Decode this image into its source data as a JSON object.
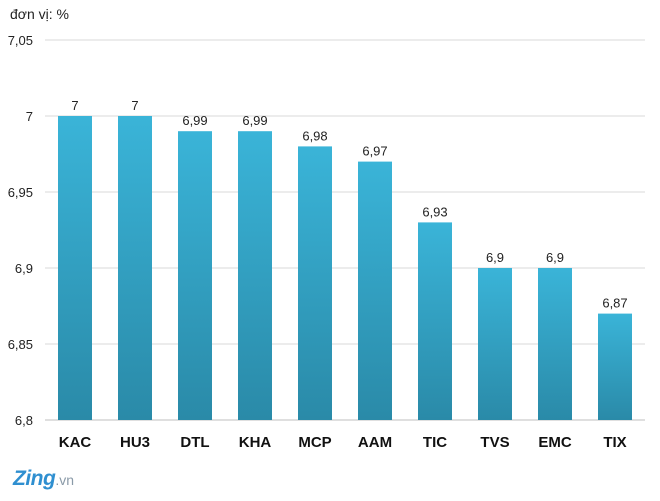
{
  "unit_label": "đơn vị: %",
  "watermark": {
    "brand": "Zing",
    "suffix": ".vn"
  },
  "chart_data": {
    "type": "bar",
    "categories": [
      "KAC",
      "HU3",
      "DTL",
      "KHA",
      "MCP",
      "AAM",
      "TIC",
      "TVS",
      "EMC",
      "TIX"
    ],
    "values": [
      7,
      7,
      6.99,
      6.99,
      6.98,
      6.97,
      6.93,
      6.9,
      6.9,
      6.87
    ],
    "value_labels": [
      "7",
      "7",
      "6,99",
      "6,99",
      "6,98",
      "6,97",
      "6,93",
      "6,9",
      "6,9",
      "6,87"
    ],
    "ylim": [
      6.8,
      7.05
    ],
    "yticks": [
      6.8,
      6.85,
      6.9,
      6.95,
      7,
      7.05
    ],
    "ytick_labels": [
      "6,8",
      "6,85",
      "6,9",
      "6,95",
      "7",
      "7,05"
    ],
    "grid": true,
    "colors": {
      "bar_top": "#3ab4d8",
      "bar_bottom": "#2a8aa8",
      "grid": "#d9d9d9",
      "axis": "#bfbfbf"
    }
  }
}
